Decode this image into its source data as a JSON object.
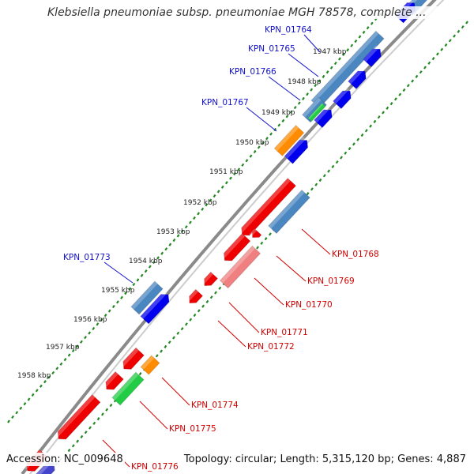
{
  "header": {
    "title": "Klebsiella pneumoniae subsp. pneumoniae MGH 78578, complete ..."
  },
  "footer": {
    "accession": "Accession: NC_009648",
    "summary": "Topology: circular; Length: 5,315,120 bp; Genes: 4,887"
  },
  "map": {
    "tick_labels": [
      "1947 kbp",
      "1948 kbp",
      "1949 kbp",
      "1950 kbp",
      "1951 kbp",
      "1952 kbp",
      "1953 kbp",
      "1954 kbp",
      "1955 kbp",
      "1956 kbp",
      "1957 kbp",
      "1958 kbp"
    ],
    "colors": {
      "backbone": "#8a8a8a",
      "cds_reverse": "#ee0000",
      "cds_forward": "#0000ee",
      "gene_blue": "#4a86c0",
      "orange": "#ff8c00",
      "green": "#22cc44",
      "pink": "#f08080",
      "tick": "#228822",
      "label_fwd": "#1010cc",
      "label_rev": "#d00000"
    },
    "gene_labels_fwd": [
      "KPN_01764",
      "KPN_01765",
      "KPN_01766",
      "KPN_01767",
      "KPN_01773"
    ],
    "gene_labels_rev": [
      "KPN_01768",
      "KPN_01769",
      "KPN_01770",
      "KPN_01771",
      "KPN_01772",
      "KPN_01774",
      "KPN_01775",
      "KPN_01776"
    ]
  }
}
